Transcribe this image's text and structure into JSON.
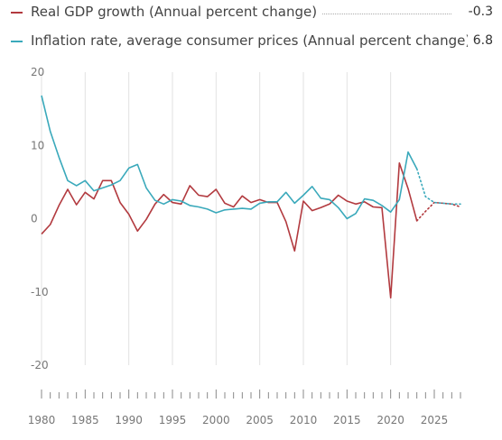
{
  "legend": [
    {
      "label": "Real GDP growth (Annual percent change)",
      "value": "-0.3",
      "color": "#b23a3f"
    },
    {
      "label": "Inflation rate, average consumer prices (Annual percent change)",
      "value": "6.8",
      "color": "#3aa9bb"
    }
  ],
  "chart_data": {
    "type": "line",
    "xlim": [
      1980,
      2028
    ],
    "ylim": [
      -20,
      20
    ],
    "yticks": [
      20,
      10,
      0,
      -10,
      -20
    ],
    "yticklabels": [
      "20",
      "10",
      "0",
      "-10",
      "-20"
    ],
    "xticks": [
      1980,
      1985,
      1990,
      1995,
      2000,
      2005,
      2010,
      2015,
      2020,
      2025
    ],
    "xticklabels": [
      "1980",
      "1985",
      "1990",
      "1995",
      "2000",
      "2005",
      "2010",
      "2015",
      "2020",
      "2025"
    ],
    "grid": "vertical",
    "legend_position": "top",
    "series": [
      {
        "name": "Real GDP growth (Annual percent change)",
        "color": "#b23a3f",
        "x": [
          1980,
          1981,
          1982,
          1983,
          1984,
          1985,
          1986,
          1987,
          1988,
          1989,
          1990,
          1991,
          1992,
          1993,
          1994,
          1995,
          1996,
          1997,
          1998,
          1999,
          2000,
          2001,
          2002,
          2003,
          2004,
          2005,
          2006,
          2007,
          2008,
          2009,
          2010,
          2011,
          2012,
          2013,
          2014,
          2015,
          2016,
          2017,
          2018,
          2019,
          2020,
          2021,
          2022,
          2023
        ],
        "y": [
          -2.1,
          -0.8,
          1.8,
          4.0,
          1.9,
          3.6,
          2.7,
          5.2,
          5.2,
          2.2,
          0.6,
          -1.7,
          -0.1,
          2.0,
          3.3,
          2.2,
          2.0,
          4.5,
          3.2,
          3.0,
          4.0,
          2.1,
          1.6,
          3.1,
          2.2,
          2.6,
          2.2,
          2.2,
          -0.4,
          -4.4,
          2.4,
          1.1,
          1.5,
          2.0,
          3.2,
          2.4,
          2.0,
          2.3,
          1.6,
          1.5,
          -10.8,
          7.6,
          4.1,
          -0.3
        ],
        "projection": {
          "x": [
            2023,
            2024,
            2025,
            2026,
            2027,
            2028
          ],
          "y": [
            -0.3,
            1.0,
            2.2,
            2.1,
            2.0,
            1.6
          ]
        }
      },
      {
        "name": "Inflation rate, average consumer prices (Annual percent change)",
        "color": "#3aa9bb",
        "x": [
          1980,
          1981,
          1982,
          1983,
          1984,
          1985,
          1986,
          1987,
          1988,
          1989,
          1990,
          1991,
          1992,
          1993,
          1994,
          1995,
          1996,
          1997,
          1998,
          1999,
          2000,
          2001,
          2002,
          2003,
          2004,
          2005,
          2006,
          2007,
          2008,
          2009,
          2010,
          2011,
          2012,
          2013,
          2014,
          2015,
          2016,
          2017,
          2018,
          2019,
          2020,
          2021,
          2022,
          2023
        ],
        "y": [
          16.8,
          11.9,
          8.4,
          5.2,
          4.5,
          5.2,
          3.8,
          4.2,
          4.6,
          5.2,
          6.9,
          7.4,
          4.2,
          2.5,
          2.0,
          2.6,
          2.4,
          1.8,
          1.6,
          1.3,
          0.8,
          1.2,
          1.3,
          1.4,
          1.3,
          2.1,
          2.3,
          2.3,
          3.6,
          2.1,
          3.2,
          4.4,
          2.8,
          2.6,
          1.5,
          0.0,
          0.7,
          2.7,
          2.5,
          1.8,
          0.9,
          2.6,
          9.1,
          6.8
        ],
        "projection": {
          "x": [
            2023,
            2024,
            2025,
            2026,
            2027,
            2028
          ],
          "y": [
            6.8,
            3.0,
            2.2,
            2.1,
            2.0,
            2.0
          ]
        }
      }
    ]
  }
}
